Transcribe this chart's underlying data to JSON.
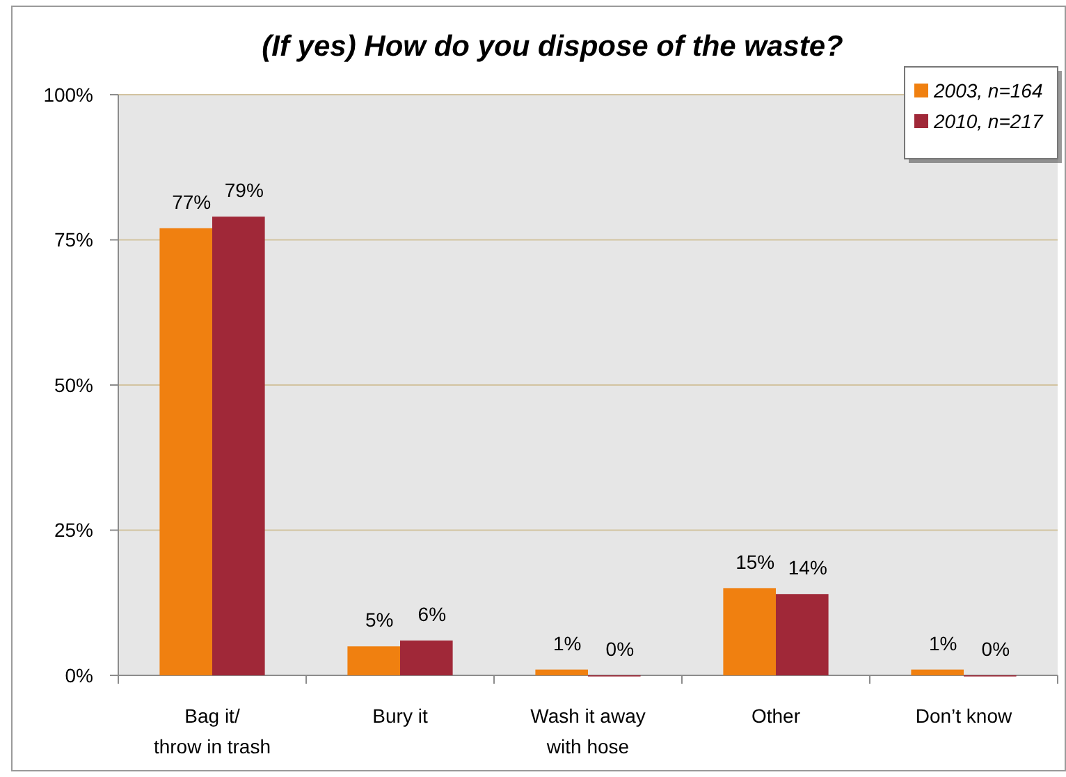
{
  "chart_data": {
    "type": "bar",
    "title": "(If yes) How do you dispose of the waste?",
    "categories": [
      "Bag it/\nthrow in trash",
      "Bury it",
      "Wash it away\nwith hose",
      "Other",
      "Don’t know"
    ],
    "series": [
      {
        "name": "2003, n=164",
        "color": "#f08010",
        "values": [
          77,
          5,
          1,
          15,
          1
        ],
        "value_labels": [
          "77%",
          "5%",
          "1%",
          "15%",
          "1%"
        ]
      },
      {
        "name": "2010, n=217",
        "color": "#a02838",
        "values": [
          79,
          6,
          0,
          14,
          0
        ],
        "value_labels": [
          "79%",
          "6%",
          "0%",
          "14%",
          "0%"
        ]
      }
    ],
    "ylim": [
      0,
      100
    ],
    "yticks": [
      {
        "value": 0,
        "label": "0%"
      },
      {
        "value": 25,
        "label": "25%"
      },
      {
        "value": 50,
        "label": "50%"
      },
      {
        "value": 75,
        "label": "75%"
      },
      {
        "value": 100,
        "label": "100%"
      }
    ],
    "grid": "y",
    "legend": "top right"
  }
}
